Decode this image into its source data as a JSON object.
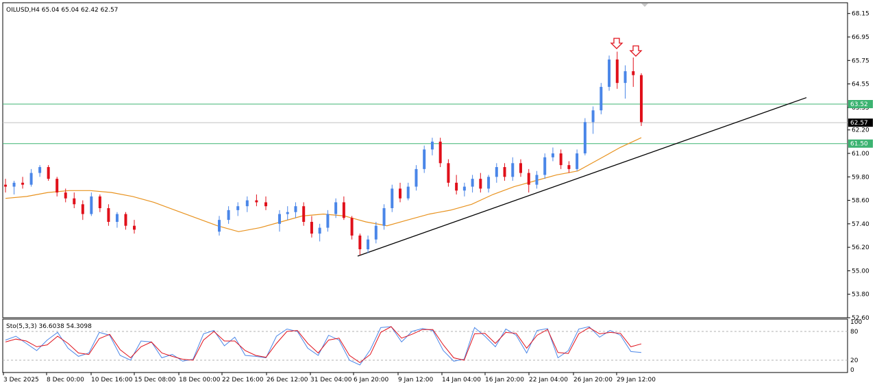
{
  "chart_data": {
    "type": "candlestick",
    "symbol_header": "OILUSD,H4  65.04 65.04 62.42 62.57",
    "price_axis": {
      "ylim": [
        52.6,
        68.7
      ],
      "ticks": [
        "68.15",
        "66.95",
        "65.75",
        "64.55",
        "63.35",
        "62.20",
        "61.00",
        "59.80",
        "58.60",
        "57.40",
        "56.20",
        "55.00",
        "53.80",
        "52.60"
      ]
    },
    "time_axis_labels": [
      "3 Dec 2025",
      "8 Dec 00:00",
      "10 Dec 16:00",
      "15 Dec 08:00",
      "18 Dec 00:00",
      "22 Dec 16:00",
      "26 Dec 12:00",
      "31 Dec 04:00",
      "6 Jan 20:00",
      "9 Jan 12:00",
      "14 Jan 04:00",
      "16 Jan 20:00",
      "22 Jan 04:00",
      "26 Jan 20:00",
      "29 Jan 12:00"
    ],
    "levels": [
      {
        "label": "63.52",
        "value": 63.52,
        "kind": "resistance",
        "color": "#3cb371"
      },
      {
        "label": "62.57",
        "value": 62.57,
        "kind": "current",
        "color": "#000000"
      },
      {
        "label": "61.50",
        "value": 61.5,
        "kind": "support",
        "color": "#3cb371"
      }
    ],
    "trendline": {
      "from_value": 55.75,
      "to_value": 63.85,
      "color": "#000000"
    },
    "moving_average": {
      "color": "#e8921e",
      "values": [
        58.7,
        58.8,
        59.0,
        59.1,
        59.1,
        59.0,
        58.8,
        58.5,
        58.1,
        57.7,
        57.3,
        57.0,
        57.2,
        57.5,
        57.8,
        57.9,
        57.8,
        57.5,
        57.3,
        57.6,
        57.9,
        58.1,
        58.4,
        58.9,
        59.3,
        59.6,
        59.9,
        60.1,
        60.7,
        61.3,
        61.8
      ]
    },
    "candles": [
      [
        59.4,
        59.7,
        59.0,
        59.3
      ],
      [
        59.3,
        59.6,
        58.9,
        59.5
      ],
      [
        59.5,
        59.8,
        59.2,
        59.4
      ],
      [
        59.4,
        60.2,
        59.3,
        60.0
      ],
      [
        60.0,
        60.4,
        59.8,
        60.3
      ],
      [
        60.3,
        60.4,
        59.6,
        59.7
      ],
      [
        59.7,
        59.8,
        58.8,
        59.0
      ],
      [
        59.0,
        59.2,
        58.5,
        58.7
      ],
      [
        58.7,
        59.0,
        58.2,
        58.4
      ],
      [
        58.4,
        58.6,
        57.6,
        57.9
      ],
      [
        57.9,
        59.0,
        57.8,
        58.8
      ],
      [
        58.8,
        58.9,
        58.0,
        58.2
      ],
      [
        58.2,
        58.4,
        57.3,
        57.5
      ],
      [
        57.5,
        58.0,
        57.2,
        57.9
      ],
      [
        57.9,
        58.0,
        57.1,
        57.3
      ],
      [
        57.3,
        57.6,
        56.9,
        57.1
      ],
      [
        57.0,
        57.8,
        56.8,
        57.6
      ],
      [
        57.6,
        58.3,
        57.4,
        58.1
      ],
      [
        58.1,
        58.5,
        57.8,
        58.3
      ],
      [
        58.3,
        58.8,
        58.0,
        58.6
      ],
      [
        58.6,
        58.9,
        58.3,
        58.5
      ],
      [
        58.5,
        58.8,
        58.1,
        58.3
      ],
      [
        57.4,
        58.1,
        57.0,
        57.9
      ],
      [
        57.9,
        58.3,
        57.6,
        58.0
      ],
      [
        58.0,
        58.5,
        57.7,
        58.3
      ],
      [
        58.3,
        58.5,
        57.3,
        57.5
      ],
      [
        57.5,
        57.8,
        56.7,
        56.9
      ],
      [
        56.9,
        57.4,
        56.5,
        57.2
      ],
      [
        57.2,
        58.1,
        57.0,
        57.9
      ],
      [
        57.9,
        58.7,
        57.7,
        58.5
      ],
      [
        58.5,
        58.8,
        57.6,
        57.7
      ],
      [
        57.7,
        57.8,
        56.6,
        56.8
      ],
      [
        56.8,
        56.9,
        55.8,
        56.1
      ],
      [
        56.1,
        56.8,
        55.9,
        56.6
      ],
      [
        56.6,
        57.5,
        56.4,
        57.3
      ],
      [
        57.3,
        58.4,
        57.1,
        58.2
      ],
      [
        58.2,
        59.4,
        58.0,
        59.2
      ],
      [
        59.2,
        59.5,
        58.5,
        58.7
      ],
      [
        58.7,
        59.5,
        58.6,
        59.3
      ],
      [
        59.3,
        60.4,
        59.1,
        60.2
      ],
      [
        60.2,
        61.4,
        60.0,
        61.2
      ],
      [
        61.2,
        61.8,
        60.9,
        61.6
      ],
      [
        61.6,
        61.8,
        60.3,
        60.5
      ],
      [
        60.5,
        60.7,
        59.3,
        59.5
      ],
      [
        59.5,
        59.9,
        58.9,
        59.1
      ],
      [
        59.1,
        59.5,
        58.8,
        59.3
      ],
      [
        59.3,
        59.9,
        59.0,
        59.7
      ],
      [
        59.7,
        60.0,
        59.0,
        59.2
      ],
      [
        59.2,
        59.9,
        59.0,
        59.8
      ],
      [
        59.8,
        60.5,
        59.5,
        60.3
      ],
      [
        60.3,
        60.5,
        59.6,
        59.8
      ],
      [
        59.8,
        60.8,
        59.6,
        60.5
      ],
      [
        60.5,
        60.7,
        59.8,
        60.0
      ],
      [
        60.0,
        60.2,
        59.0,
        59.4
      ],
      [
        59.4,
        60.1,
        59.2,
        59.9
      ],
      [
        59.9,
        61.0,
        59.7,
        60.8
      ],
      [
        60.8,
        61.3,
        60.6,
        61.0
      ],
      [
        61.0,
        61.2,
        60.2,
        60.4
      ],
      [
        60.4,
        60.6,
        60.0,
        60.2
      ],
      [
        60.2,
        61.2,
        60.1,
        61.0
      ],
      [
        61.0,
        62.8,
        60.9,
        62.6
      ],
      [
        62.6,
        63.4,
        62.0,
        63.2
      ],
      [
        63.2,
        64.6,
        63.0,
        64.4
      ],
      [
        64.4,
        66.0,
        64.2,
        65.8
      ],
      [
        65.8,
        66.2,
        64.3,
        64.6
      ],
      [
        64.6,
        65.5,
        63.8,
        65.2
      ],
      [
        65.2,
        65.9,
        64.4,
        65.0
      ],
      [
        65.0,
        65.1,
        62.4,
        62.6
      ]
    ],
    "stochastic": {
      "label": "Sto(5,3,3) 36.6038 54.3098",
      "ylim": [
        0,
        100
      ],
      "levels": [
        20,
        80
      ],
      "ticks": [
        "100",
        "80",
        "20",
        "0"
      ],
      "main": [
        62,
        70,
        55,
        40,
        62,
        78,
        45,
        28,
        35,
        78,
        72,
        30,
        20,
        60,
        58,
        25,
        32,
        18,
        22,
        75,
        82,
        50,
        68,
        30,
        28,
        25,
        70,
        85,
        80,
        45,
        30,
        72,
        62,
        20,
        10,
        42,
        88,
        90,
        58,
        80,
        86,
        82,
        40,
        18,
        22,
        88,
        70,
        48,
        85,
        72,
        35,
        82,
        86,
        25,
        40,
        85,
        90,
        68,
        82,
        72,
        38,
        36
      ],
      "signal": [
        58,
        64,
        60,
        48,
        52,
        70,
        55,
        35,
        32,
        65,
        74,
        42,
        25,
        48,
        58,
        35,
        28,
        22,
        20,
        62,
        80,
        60,
        60,
        40,
        30,
        26,
        55,
        80,
        82,
        55,
        35,
        62,
        66,
        30,
        15,
        32,
        78,
        90,
        66,
        74,
        84,
        84,
        52,
        25,
        20,
        75,
        76,
        55,
        78,
        76,
        45,
        72,
        84,
        36,
        34,
        75,
        88,
        75,
        78,
        76,
        48,
        54
      ]
    }
  }
}
